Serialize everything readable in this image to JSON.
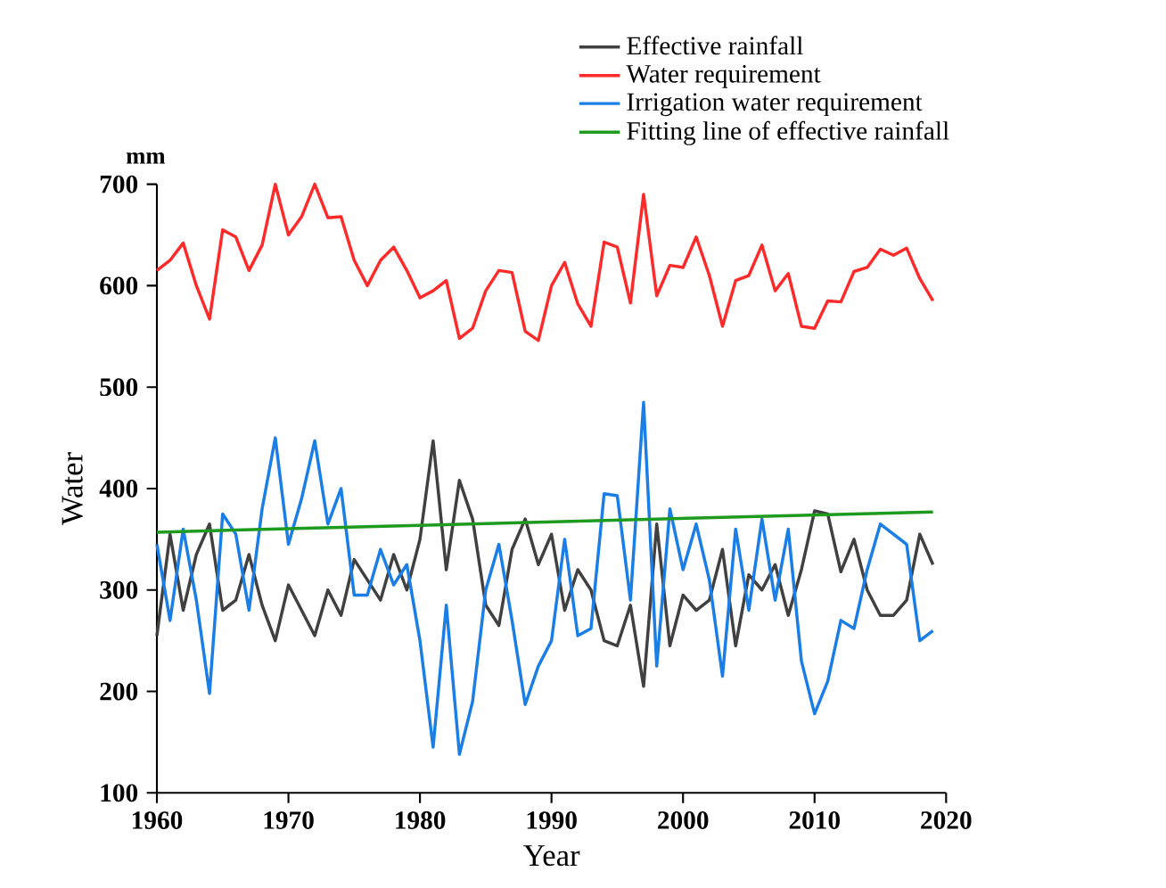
{
  "chart_data": {
    "type": "line",
    "xlabel": "Year",
    "ylabel": "Water",
    "annotations": [
      "mm"
    ],
    "x": [
      1960,
      1961,
      1962,
      1963,
      1964,
      1965,
      1966,
      1967,
      1968,
      1969,
      1970,
      1971,
      1972,
      1973,
      1974,
      1975,
      1976,
      1977,
      1978,
      1979,
      1980,
      1981,
      1982,
      1983,
      1984,
      1985,
      1986,
      1987,
      1988,
      1989,
      1990,
      1991,
      1992,
      1993,
      1994,
      1995,
      1996,
      1997,
      1998,
      1999,
      2000,
      2001,
      2002,
      2003,
      2004,
      2005,
      2006,
      2007,
      2008,
      2009,
      2010,
      2011,
      2012,
      2013,
      2014,
      2015,
      2016,
      2017,
      2018,
      2019
    ],
    "series": [
      {
        "name": "Effective rainfall",
        "color": "#404040",
        "values": [
          255,
          355,
          280,
          335,
          365,
          280,
          290,
          335,
          285,
          250,
          305,
          280,
          255,
          300,
          275,
          330,
          310,
          290,
          335,
          300,
          350,
          447,
          320,
          408,
          370,
          285,
          265,
          340,
          370,
          325,
          355,
          280,
          320,
          300,
          250,
          245,
          285,
          205,
          365,
          245,
          295,
          280,
          290,
          340,
          245,
          315,
          300,
          325,
          275,
          320,
          378,
          375,
          318,
          350,
          300,
          275,
          275,
          290,
          355,
          325
        ]
      },
      {
        "name": "Water requirement",
        "color": "#ff2a2a",
        "values": [
          615,
          625,
          642,
          600,
          567,
          655,
          648,
          615,
          640,
          700,
          650,
          668,
          700,
          667,
          668,
          625,
          600,
          625,
          638,
          615,
          588,
          595,
          605,
          548,
          558,
          595,
          615,
          613,
          555,
          546,
          600,
          623,
          582,
          560,
          643,
          638,
          583,
          690,
          590,
          620,
          618,
          648,
          610,
          560,
          605,
          610,
          640,
          595,
          612,
          560,
          558,
          585,
          584,
          614,
          618,
          636,
          630,
          637,
          607,
          585
        ]
      },
      {
        "name": "Irrigation water requirement",
        "color": "#1a7ee6",
        "values": [
          345,
          270,
          360,
          290,
          198,
          375,
          355,
          280,
          380,
          450,
          345,
          390,
          447,
          365,
          400,
          295,
          295,
          340,
          305,
          325,
          250,
          145,
          285,
          138,
          190,
          300,
          345,
          270,
          187,
          225,
          250,
          350,
          255,
          262,
          395,
          393,
          290,
          485,
          225,
          380,
          320,
          365,
          310,
          215,
          360,
          280,
          370,
          290,
          360,
          230,
          178,
          210,
          270,
          262,
          320,
          365,
          355,
          345,
          250,
          260
        ]
      },
      {
        "name": "Fitting line of effective rainfall",
        "color": "#1e9a1e",
        "x": [
          1960,
          2019
        ],
        "values": [
          357,
          377
        ]
      }
    ],
    "xlim": [
      1960,
      2020
    ],
    "ylim": [
      100,
      700
    ],
    "xticks": [
      1960,
      1970,
      1980,
      1990,
      2000,
      2010,
      2020
    ],
    "yticks": [
      100,
      200,
      300,
      400,
      500,
      600,
      700
    ],
    "legend": "top right",
    "grid": false,
    "marker": "none",
    "line_style": "solid"
  }
}
